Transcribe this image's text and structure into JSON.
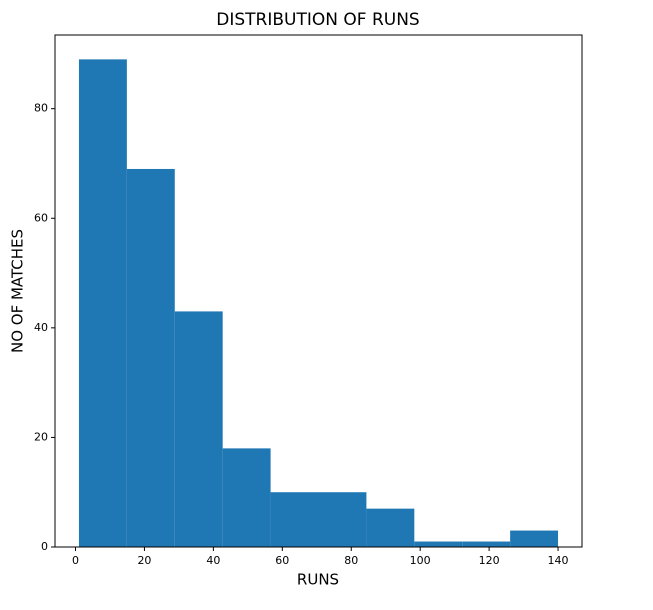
{
  "chart_data": {
    "type": "histogram",
    "title": "DISTRIBUTION OF RUNS",
    "x_label": "RUNS",
    "y_label": "NO OF MATCHES",
    "bins": [
      1,
      14.9,
      28.8,
      42.7,
      56.6,
      70.5,
      84.4,
      98.3,
      112.2,
      126.1,
      140
    ],
    "values": [
      89,
      69,
      43,
      18,
      10,
      10,
      7,
      1,
      1,
      3
    ],
    "color": "#1f77b4",
    "xlim": [
      -5.95,
      146.95
    ],
    "xticks": [
      0,
      20,
      40,
      60,
      80,
      100,
      120,
      140
    ],
    "ylim": [
      0,
      93.45
    ],
    "yticks": [
      0,
      20,
      40,
      60,
      80
    ]
  }
}
